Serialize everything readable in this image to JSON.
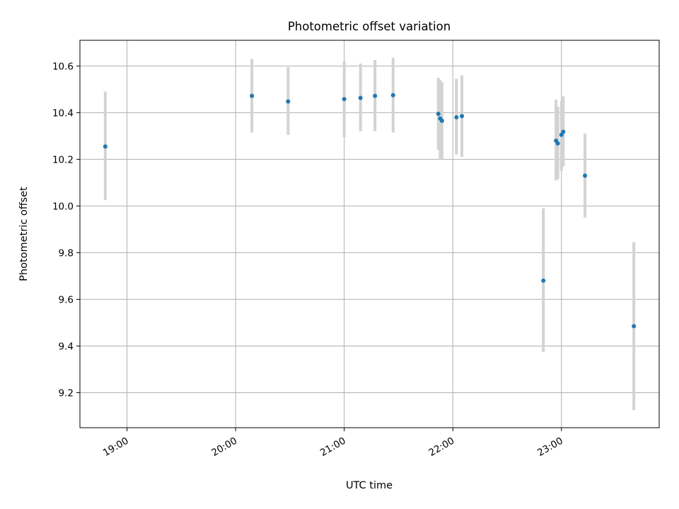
{
  "chart_data": {
    "type": "scatter",
    "title": "Photometric offset variation",
    "xlabel": "UTC time",
    "ylabel": "Photometric offset",
    "x_range": [
      "18:34",
      "23:54"
    ],
    "ylim": [
      9.05,
      10.71
    ],
    "x_ticks": [
      "19:00",
      "20:00",
      "21:00",
      "22:00",
      "23:00"
    ],
    "y_ticks": [
      9.2,
      9.4,
      9.6,
      9.8,
      10.0,
      10.2,
      10.4,
      10.6
    ],
    "grid": true,
    "marker_color": "#1f77b4",
    "errorbar_color": "#d3d3d3",
    "points": [
      {
        "t": "18:48",
        "y": 10.255,
        "lo": 10.025,
        "hi": 10.49
      },
      {
        "t": "20:09",
        "y": 10.472,
        "lo": 10.315,
        "hi": 10.63
      },
      {
        "t": "20:29",
        "y": 10.448,
        "lo": 10.305,
        "hi": 10.595
      },
      {
        "t": "21:00",
        "y": 10.458,
        "lo": 10.295,
        "hi": 10.62
      },
      {
        "t": "21:09",
        "y": 10.463,
        "lo": 10.32,
        "hi": 10.61
      },
      {
        "t": "21:17",
        "y": 10.472,
        "lo": 10.32,
        "hi": 10.625
      },
      {
        "t": "21:27",
        "y": 10.475,
        "lo": 10.315,
        "hi": 10.635
      },
      {
        "t": "21:52",
        "y": 10.395,
        "lo": 10.24,
        "hi": 10.55
      },
      {
        "t": "21:53",
        "y": 10.375,
        "lo": 10.2,
        "hi": 10.54
      },
      {
        "t": "21:54",
        "y": 10.365,
        "lo": 10.2,
        "hi": 10.53
      },
      {
        "t": "22:02",
        "y": 10.38,
        "lo": 10.22,
        "hi": 10.545
      },
      {
        "t": "22:05",
        "y": 10.385,
        "lo": 10.21,
        "hi": 10.56
      },
      {
        "t": "22:50",
        "y": 9.68,
        "lo": 9.375,
        "hi": 9.99
      },
      {
        "t": "22:57",
        "y": 10.28,
        "lo": 10.11,
        "hi": 10.455
      },
      {
        "t": "22:58",
        "y": 10.268,
        "lo": 10.115,
        "hi": 10.425
      },
      {
        "t": "23:00",
        "y": 10.305,
        "lo": 10.15,
        "hi": 10.45
      },
      {
        "t": "23:01",
        "y": 10.318,
        "lo": 10.17,
        "hi": 10.47
      },
      {
        "t": "23:13",
        "y": 10.13,
        "lo": 9.95,
        "hi": 10.31
      },
      {
        "t": "23:40",
        "y": 9.485,
        "lo": 9.125,
        "hi": 9.845
      }
    ]
  }
}
